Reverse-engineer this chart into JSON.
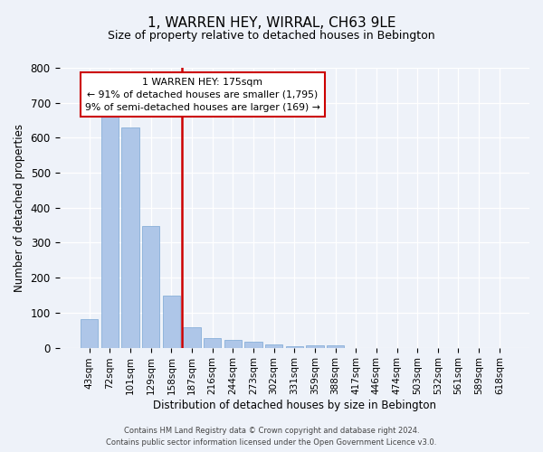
{
  "title": "1, WARREN HEY, WIRRAL, CH63 9LE",
  "subtitle": "Size of property relative to detached houses in Bebington",
  "xlabel": "Distribution of detached houses by size in Bebington",
  "ylabel": "Number of detached properties",
  "bar_labels": [
    "43sqm",
    "72sqm",
    "101sqm",
    "129sqm",
    "158sqm",
    "187sqm",
    "216sqm",
    "244sqm",
    "273sqm",
    "302sqm",
    "331sqm",
    "359sqm",
    "388sqm",
    "417sqm",
    "446sqm",
    "474sqm",
    "503sqm",
    "532sqm",
    "561sqm",
    "589sqm",
    "618sqm"
  ],
  "bar_values": [
    82,
    665,
    630,
    349,
    148,
    58,
    27,
    22,
    16,
    10,
    5,
    8,
    8,
    0,
    0,
    0,
    0,
    0,
    0,
    0,
    0
  ],
  "bar_color": "#aec6e8",
  "bar_edge_color": "#7ba7d4",
  "property_label": "1 WARREN HEY: 175sqm",
  "annotation_line1": "← 91% of detached houses are smaller (1,795)",
  "annotation_line2": "9% of semi-detached houses are larger (169) →",
  "vline_color": "#cc0000",
  "vline_x": 4.5,
  "annotation_box_color": "#ffffff",
  "annotation_box_edge": "#cc0000",
  "ylim": [
    0,
    800
  ],
  "yticks": [
    0,
    100,
    200,
    300,
    400,
    500,
    600,
    700,
    800
  ],
  "footer_line1": "Contains HM Land Registry data © Crown copyright and database right 2024.",
  "footer_line2": "Contains public sector information licensed under the Open Government Licence v3.0.",
  "bg_color": "#eef2f9",
  "plot_bg_color": "#eef2f9"
}
